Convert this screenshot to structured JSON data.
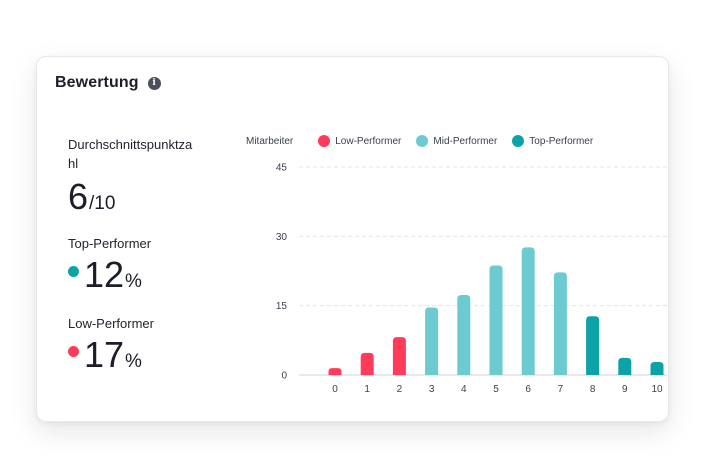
{
  "card": {
    "title": "Bewertung",
    "info_icon": "info-icon"
  },
  "stats": {
    "avg_label": "Durchschnittspunktzahl",
    "avg_value": "6",
    "avg_suffix": "/10",
    "top_label": "Top-Performer",
    "top_value": "12",
    "top_suffix": "%",
    "low_label": "Low-Performer",
    "low_value": "17",
    "low_suffix": "%"
  },
  "colors": {
    "low": "#ff3b5c",
    "mid": "#6ccbd0",
    "top": "#0ba3a8",
    "grid": "#e3e5ea"
  },
  "chart_data": {
    "type": "bar",
    "ylabel": "Mitarbeiter",
    "ylim": [
      0,
      45
    ],
    "yticks": [
      0,
      15,
      30,
      45
    ],
    "grid": true,
    "legend_position": "top",
    "categories": [
      "0",
      "1",
      "2",
      "3",
      "4",
      "5",
      "6",
      "7",
      "8",
      "9",
      "10"
    ],
    "values": [
      1.5,
      4.8,
      8.2,
      14.6,
      17.3,
      23.7,
      27.6,
      22.2,
      12.7,
      3.7,
      2.8
    ],
    "groups": [
      "low",
      "low",
      "low",
      "mid",
      "mid",
      "mid",
      "mid",
      "mid",
      "top",
      "top",
      "top"
    ],
    "series": [
      {
        "key": "low",
        "name": "Low-Performer"
      },
      {
        "key": "mid",
        "name": "Mid-Performer"
      },
      {
        "key": "top",
        "name": "Top-Performer"
      }
    ]
  }
}
